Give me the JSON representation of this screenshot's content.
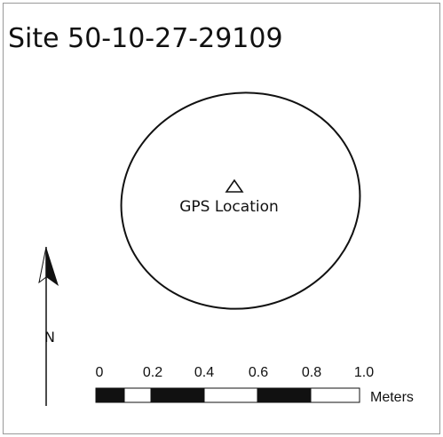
{
  "title": "Site 50-10-27-29109",
  "label": "GPS Location",
  "north": "N",
  "scale": {
    "labels": [
      "0",
      "0.2",
      "0.4",
      "0.6",
      "0.8",
      "1.0"
    ],
    "unit": "Meters"
  }
}
